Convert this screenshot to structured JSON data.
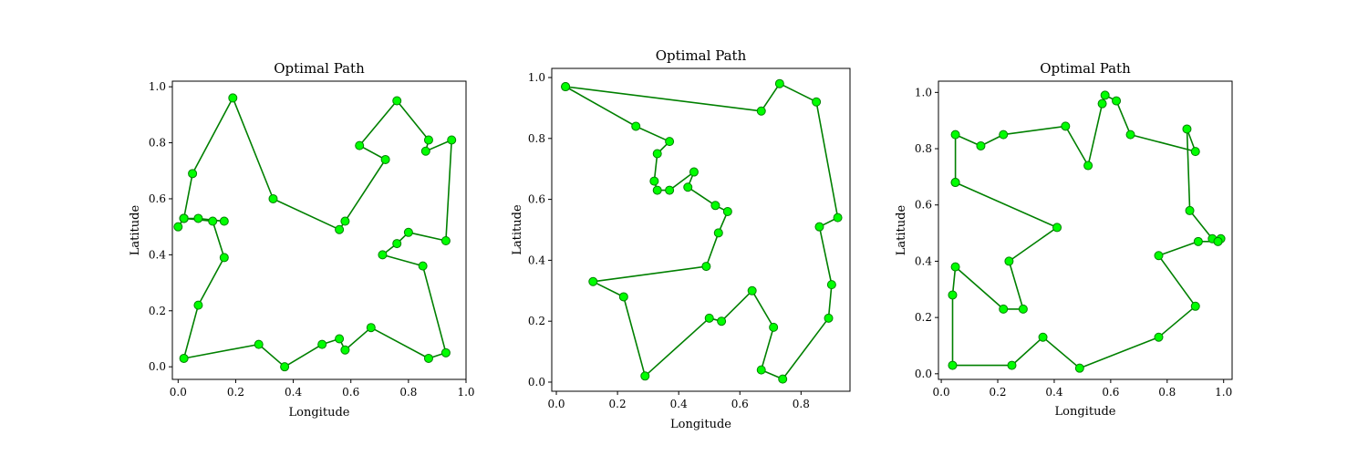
{
  "chart_data": [
    {
      "type": "line",
      "title": "Optimal Path",
      "xlabel": "Longitude",
      "ylabel": "Latitude",
      "xlim": [
        -0.02,
        1.0
      ],
      "ylim": [
        -0.045,
        1.02
      ],
      "xticks": [
        0.0,
        0.2,
        0.4,
        0.6,
        0.8,
        1.0
      ],
      "xtick_labels": [
        "0.0",
        "0.2",
        "0.4",
        "0.6",
        "0.8",
        "1.0"
      ],
      "yticks": [
        0.0,
        0.2,
        0.4,
        0.6,
        0.8,
        1.0
      ],
      "ytick_labels": [
        "0.0",
        "0.2",
        "0.4",
        "0.6",
        "0.8",
        "1.0"
      ],
      "grid": false,
      "line_color": "#008000",
      "marker_color": "#00ff00",
      "marker_edge_color": "#008000",
      "x": [
        0.02,
        0.16,
        0.07,
        0.02,
        0.0,
        0.02,
        0.12,
        0.16,
        0.07,
        0.02,
        0.28,
        0.37,
        0.5,
        0.56,
        0.58,
        0.67,
        0.87,
        0.93,
        0.85,
        0.71,
        0.76,
        0.8,
        0.93,
        0.95,
        0.86,
        0.87,
        0.76,
        0.63,
        0.72,
        0.58,
        0.56,
        0.33,
        0.19,
        0.05,
        0.02
      ],
      "y": [
        0.53,
        0.52,
        0.53,
        0.53,
        0.5,
        0.53,
        0.52,
        0.39,
        0.22,
        0.03,
        0.08,
        0.0,
        0.08,
        0.1,
        0.06,
        0.14,
        0.03,
        0.05,
        0.36,
        0.4,
        0.44,
        0.48,
        0.45,
        0.81,
        0.77,
        0.81,
        0.95,
        0.79,
        0.74,
        0.52,
        0.49,
        0.6,
        0.96,
        0.69,
        0.53
      ]
    },
    {
      "type": "line",
      "title": "Optimal Path",
      "xlabel": "Longitude",
      "ylabel": "Latitude",
      "xlim": [
        -0.015,
        0.96
      ],
      "ylim": [
        -0.03,
        1.03
      ],
      "xticks": [
        0.0,
        0.2,
        0.4,
        0.6,
        0.8
      ],
      "xtick_labels": [
        "0.0",
        "0.2",
        "0.4",
        "0.6",
        "0.8"
      ],
      "yticks": [
        0.0,
        0.2,
        0.4,
        0.6,
        0.8,
        1.0
      ],
      "ytick_labels": [
        "0.0",
        "0.2",
        "0.4",
        "0.6",
        "0.8",
        "1.0"
      ],
      "grid": false,
      "line_color": "#008000",
      "marker_color": "#00ff00",
      "marker_edge_color": "#008000",
      "x": [
        0.03,
        0.67,
        0.73,
        0.85,
        0.92,
        0.86,
        0.9,
        0.89,
        0.74,
        0.67,
        0.71,
        0.64,
        0.54,
        0.5,
        0.29,
        0.22,
        0.12,
        0.49,
        0.53,
        0.56,
        0.52,
        0.43,
        0.45,
        0.37,
        0.33,
        0.32,
        0.33,
        0.37,
        0.26,
        0.03
      ],
      "y": [
        0.97,
        0.89,
        0.98,
        0.92,
        0.54,
        0.51,
        0.32,
        0.21,
        0.01,
        0.04,
        0.18,
        0.3,
        0.2,
        0.21,
        0.02,
        0.28,
        0.33,
        0.38,
        0.49,
        0.56,
        0.58,
        0.64,
        0.69,
        0.63,
        0.63,
        0.66,
        0.75,
        0.79,
        0.84,
        0.97
      ]
    },
    {
      "type": "line",
      "title": "Optimal Path",
      "xlabel": "Longitude",
      "ylabel": "Latitude",
      "xlim": [
        -0.01,
        1.03
      ],
      "ylim": [
        -0.02,
        1.04
      ],
      "xticks": [
        0.0,
        0.2,
        0.4,
        0.6,
        0.8,
        1.0
      ],
      "xtick_labels": [
        "0.0",
        "0.2",
        "0.4",
        "0.6",
        "0.8",
        "1.0"
      ],
      "yticks": [
        0.0,
        0.2,
        0.4,
        0.6,
        0.8,
        1.0
      ],
      "ytick_labels": [
        "0.0",
        "0.2",
        "0.4",
        "0.6",
        "0.8",
        "1.0"
      ],
      "grid": false,
      "line_color": "#008000",
      "marker_color": "#00ff00",
      "marker_edge_color": "#008000",
      "x": [
        0.05,
        0.05,
        0.14,
        0.22,
        0.44,
        0.52,
        0.57,
        0.58,
        0.62,
        0.67,
        0.9,
        0.87,
        0.88,
        0.96,
        0.99,
        0.98,
        0.91,
        0.77,
        0.9,
        0.77,
        0.49,
        0.36,
        0.25,
        0.04,
        0.04,
        0.05,
        0.22,
        0.29,
        0.24,
        0.41,
        0.05
      ],
      "y": [
        0.68,
        0.85,
        0.81,
        0.85,
        0.88,
        0.74,
        0.96,
        0.99,
        0.97,
        0.85,
        0.79,
        0.87,
        0.58,
        0.48,
        0.48,
        0.47,
        0.47,
        0.42,
        0.24,
        0.13,
        0.02,
        0.13,
        0.03,
        0.03,
        0.28,
        0.38,
        0.23,
        0.23,
        0.4,
        0.52,
        0.68
      ]
    }
  ]
}
